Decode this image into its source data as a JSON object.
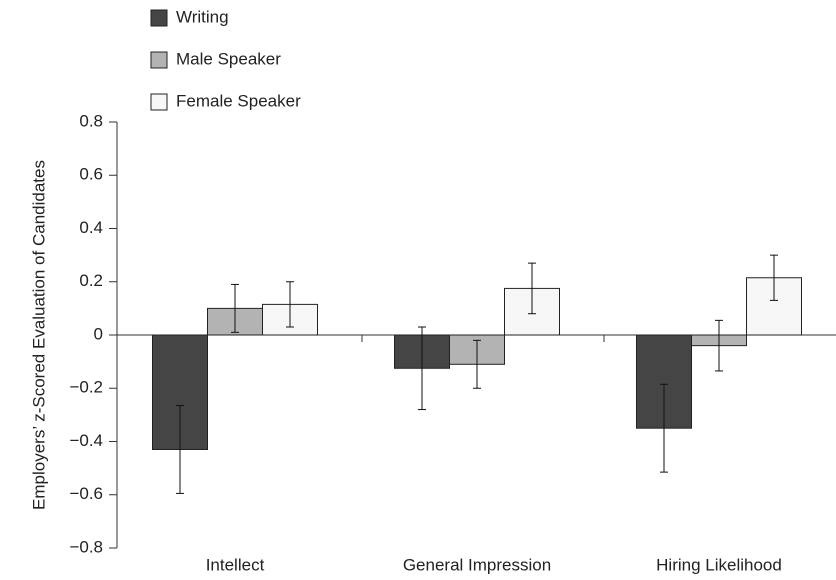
{
  "chart_data": {
    "type": "bar",
    "y_label": "Employers’ z-Scored Evaluation of Candidates",
    "categories": [
      "Intellect",
      "General Impression",
      "Hiring Likelihood"
    ],
    "series": [
      {
        "name": "Writing",
        "color": "#454545",
        "values": [
          -0.43,
          -0.125,
          -0.35
        ],
        "errors": [
          0.165,
          0.155,
          0.165
        ]
      },
      {
        "name": "Male Speaker",
        "color": "#b3b3b3",
        "values": [
          0.1,
          -0.11,
          -0.04
        ],
        "errors": [
          0.09,
          0.09,
          0.095
        ]
      },
      {
        "name": "Female Speaker",
        "color": "#f7f7f7",
        "values": [
          0.115,
          0.175,
          0.215
        ],
        "errors": [
          0.085,
          0.095,
          0.085
        ]
      }
    ],
    "ylim": [
      -0.8,
      0.8
    ],
    "yticks": [
      0.8,
      0.6,
      0.4,
      0.2,
      0,
      {
        "value": -0.2,
        "label": "−0.2"
      },
      {
        "value": -0.4,
        "label": "−0.4"
      },
      {
        "value": -0.6,
        "label": "−0.6"
      },
      {
        "value": -0.8,
        "label": "−0.8"
      }
    ],
    "legend": "top-left"
  }
}
